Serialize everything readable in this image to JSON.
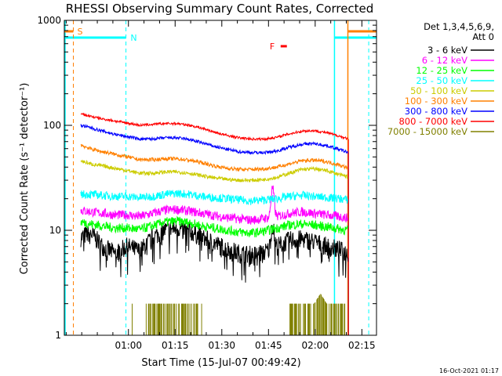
{
  "chart_data": {
    "type": "line",
    "title": "RHESSI Observing Summary Count Rates, Corrected",
    "xlabel": "Start Time (15-Jul-07 00:49:42)",
    "ylabel": "Corrected Count Rate (s⁻¹ detector⁻¹)",
    "x_tick_labels": [
      "01:00",
      "01:15",
      "01:30",
      "01:45",
      "02:00",
      "02:15"
    ],
    "x_ticks_minutes": [
      70.3,
      85.3,
      100.3,
      115.3,
      130.3,
      145.3
    ],
    "xlim_minutes": [
      49.7,
      150.0
    ],
    "y_scale": "log",
    "ylim": [
      1,
      1000
    ],
    "y_tick_labels": [
      "1",
      "10",
      "100",
      "1000"
    ],
    "legend": {
      "header": "Det 1,3,4,5,6,9,",
      "attenuator": "Att 0",
      "placement": "right"
    },
    "series": [
      {
        "name": "3 - 6 keV",
        "color": "#000000",
        "x": [
          55,
          58,
          62,
          66,
          70,
          74,
          78,
          82,
          86,
          90,
          94,
          98,
          102,
          106,
          110,
          114,
          118,
          122,
          126,
          130,
          134,
          138,
          141
        ],
        "values": [
          8.5,
          9.5,
          7.0,
          6.0,
          7.0,
          6.3,
          8.5,
          10.0,
          10.5,
          9.8,
          8.5,
          7.5,
          6.6,
          6.0,
          5.8,
          6.2,
          7.0,
          8.0,
          8.2,
          7.8,
          7.0,
          6.5,
          6.0
        ]
      },
      {
        "name": "6 - 12 keV",
        "color": "#ff00ff",
        "x": [
          55,
          58,
          62,
          66,
          70,
          74,
          78,
          82,
          86,
          90,
          94,
          98,
          102,
          106,
          110,
          114,
          118,
          122,
          126,
          130,
          134,
          138,
          141
        ],
        "values": [
          15.5,
          15.0,
          14.5,
          14.0,
          14.0,
          13.5,
          14.5,
          15.5,
          15.8,
          15.2,
          14.5,
          13.8,
          13.2,
          12.8,
          12.5,
          13.0,
          13.5,
          14.5,
          15.0,
          14.5,
          14.0,
          13.5,
          13.0
        ]
      },
      {
        "name": "12 - 25 keV",
        "color": "#00ff00",
        "x": [
          55,
          58,
          62,
          66,
          70,
          74,
          78,
          82,
          86,
          90,
          94,
          98,
          102,
          106,
          110,
          114,
          118,
          122,
          126,
          130,
          134,
          138,
          141
        ],
        "values": [
          12.0,
          11.5,
          11.0,
          10.5,
          10.5,
          10.2,
          11.0,
          12.0,
          12.2,
          11.8,
          11.0,
          10.5,
          10.0,
          9.6,
          9.4,
          9.8,
          10.5,
          11.2,
          11.5,
          11.2,
          10.8,
          10.3,
          10.0
        ]
      },
      {
        "name": "25 - 50 keV",
        "color": "#00ffff",
        "x": [
          55,
          58,
          62,
          66,
          70,
          74,
          78,
          82,
          86,
          90,
          94,
          98,
          102,
          106,
          110,
          114,
          118,
          122,
          126,
          130,
          134,
          138,
          141
        ],
        "values": [
          22.0,
          22.0,
          21.5,
          21.0,
          21.0,
          20.5,
          21.0,
          22.0,
          22.5,
          22.0,
          21.0,
          20.5,
          20.0,
          19.5,
          19.0,
          19.5,
          20.0,
          21.0,
          21.5,
          21.0,
          20.5,
          20.0,
          19.5
        ]
      },
      {
        "name": "50 - 100 keV",
        "color": "#cccc00",
        "x": [
          55,
          58,
          62,
          66,
          70,
          74,
          78,
          82,
          86,
          90,
          94,
          98,
          102,
          106,
          110,
          114,
          118,
          122,
          126,
          130,
          134,
          138,
          141
        ],
        "values": [
          46,
          43,
          41,
          39,
          37,
          35,
          35,
          36,
          36,
          35,
          33,
          31.5,
          30.5,
          30,
          30,
          30.5,
          32,
          35,
          38,
          38.5,
          37,
          34,
          32
        ]
      },
      {
        "name": "100 - 300 keV",
        "color": "#ff8000",
        "x": [
          55,
          58,
          62,
          66,
          70,
          74,
          78,
          82,
          86,
          90,
          94,
          98,
          102,
          106,
          110,
          114,
          118,
          122,
          126,
          130,
          134,
          138,
          141
        ],
        "values": [
          65,
          60,
          56,
          53,
          50,
          47,
          47,
          48,
          48,
          46.5,
          44,
          41,
          39,
          38,
          38,
          38.5,
          40,
          43,
          46,
          46.5,
          45,
          42,
          39
        ]
      },
      {
        "name": "300 - 800 keV",
        "color": "#0000ff",
        "x": [
          55,
          58,
          62,
          66,
          70,
          74,
          78,
          82,
          86,
          90,
          94,
          98,
          102,
          106,
          110,
          114,
          118,
          122,
          126,
          130,
          134,
          138,
          141
        ],
        "values": [
          100,
          95,
          88,
          82,
          78,
          74,
          74,
          76,
          76,
          73,
          68,
          63,
          59,
          56,
          55,
          55,
          57,
          62,
          66,
          67,
          64,
          59,
          55
        ]
      },
      {
        "name": "800 - 7000 keV",
        "color": "#ff0000",
        "x": [
          55,
          58,
          62,
          66,
          70,
          74,
          78,
          82,
          86,
          90,
          94,
          98,
          102,
          106,
          110,
          114,
          118,
          122,
          126,
          130,
          134,
          138,
          141
        ],
        "values": [
          128,
          122,
          115,
          110,
          105,
          100,
          102,
          104,
          104,
          100,
          94,
          86,
          80,
          76,
          74,
          74,
          77,
          83,
          88,
          89,
          85,
          79,
          74
        ]
      },
      {
        "name": "7000 - 15000 keV",
        "color": "#808000",
        "x": [
          76,
          78,
          80,
          82,
          84,
          86,
          88,
          90,
          92,
          94,
          122,
          124,
          126,
          128,
          130,
          132,
          134,
          136,
          138,
          140
        ],
        "values": [
          2.0,
          2.0,
          2.0,
          2.0,
          2.0,
          2.0,
          2.0,
          2.0,
          2.0,
          2.0,
          2.0,
          2.0,
          2.0,
          2.0,
          2.0,
          2.5,
          2.0,
          2.0,
          2.0,
          2.0
        ]
      }
    ],
    "annotations": {
      "saa": {
        "label": "S",
        "color": "#ff8000"
      },
      "night": {
        "label": "N",
        "color": "#00ffff"
      },
      "flare": {
        "label": "F",
        "color": "#ff0000"
      }
    }
  },
  "footer": {
    "timestamp": "16-Oct-2021 01:17"
  }
}
